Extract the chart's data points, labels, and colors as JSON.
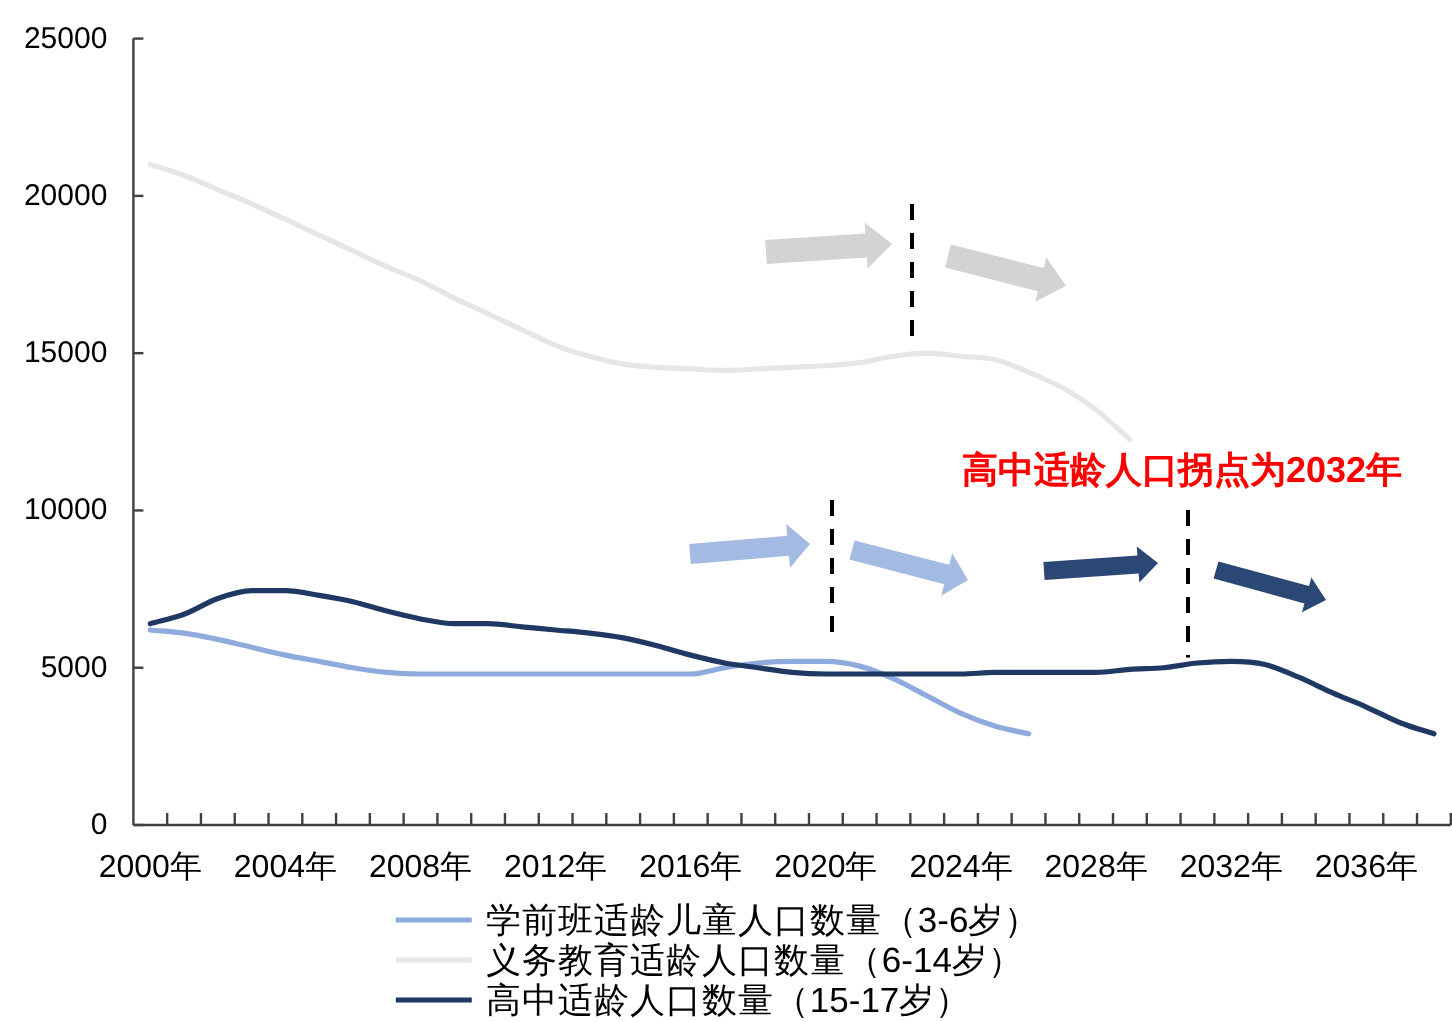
{
  "chart_data": {
    "type": "line",
    "categories": [
      "2000年",
      null,
      null,
      null,
      "2004年",
      null,
      null,
      null,
      "2008年",
      null,
      null,
      null,
      "2012年",
      null,
      null,
      null,
      "2016年",
      null,
      null,
      null,
      "2020年",
      null,
      null,
      null,
      "2024年",
      null,
      null,
      null,
      "2028年",
      null,
      null,
      null,
      "2032年",
      null,
      null,
      null,
      "2036年",
      null,
      null
    ],
    "series": [
      {
        "name": "学前班适龄儿童人口数量（3-6岁）",
        "color": "#8faadc",
        "values": [
          6200,
          6100,
          5900,
          5650,
          5400,
          5200,
          5000,
          4850,
          4800,
          4800,
          4800,
          4800,
          4800,
          4800,
          4800,
          4800,
          4800,
          5000,
          5150,
          5200,
          5200,
          5050,
          4650,
          4100,
          3550,
          3150,
          2900,
          null,
          null,
          null,
          null,
          null,
          null,
          null,
          null,
          null,
          null,
          null,
          null
        ]
      },
      {
        "name": "义务教育适龄人口数量（6-14岁）",
        "color": "#e7e6e6",
        "values": [
          21000,
          20650,
          20200,
          19750,
          19250,
          18750,
          18250,
          17750,
          17300,
          16750,
          16250,
          15750,
          15250,
          14900,
          14650,
          14550,
          14500,
          14450,
          14500,
          14550,
          14600,
          14700,
          14900,
          15000,
          14900,
          14800,
          14400,
          13900,
          13200,
          12250,
          null,
          null,
          null,
          null,
          null,
          null,
          null,
          null,
          null
        ]
      },
      {
        "name": "高中适龄人口数量（15-17岁）",
        "color": "#1f3864",
        "values": [
          6400,
          6700,
          7200,
          7450,
          7450,
          7300,
          7100,
          6800,
          6550,
          6400,
          6400,
          6300,
          6200,
          6100,
          5950,
          5700,
          5400,
          5150,
          5000,
          4850,
          4800,
          4800,
          4800,
          4800,
          4800,
          4850,
          4850,
          4850,
          4850,
          4950,
          5000,
          5150,
          5200,
          5100,
          4700,
          4200,
          3750,
          3250,
          2900
        ]
      }
    ],
    "ylim": [
      0,
      25000
    ],
    "yticks": [
      0,
      5000,
      10000,
      15000,
      20000,
      25000
    ],
    "legend": "bottom",
    "annotations": [
      {
        "text": "高中适龄人口拐点为2032年",
        "y": 5200
      }
    ]
  }
}
